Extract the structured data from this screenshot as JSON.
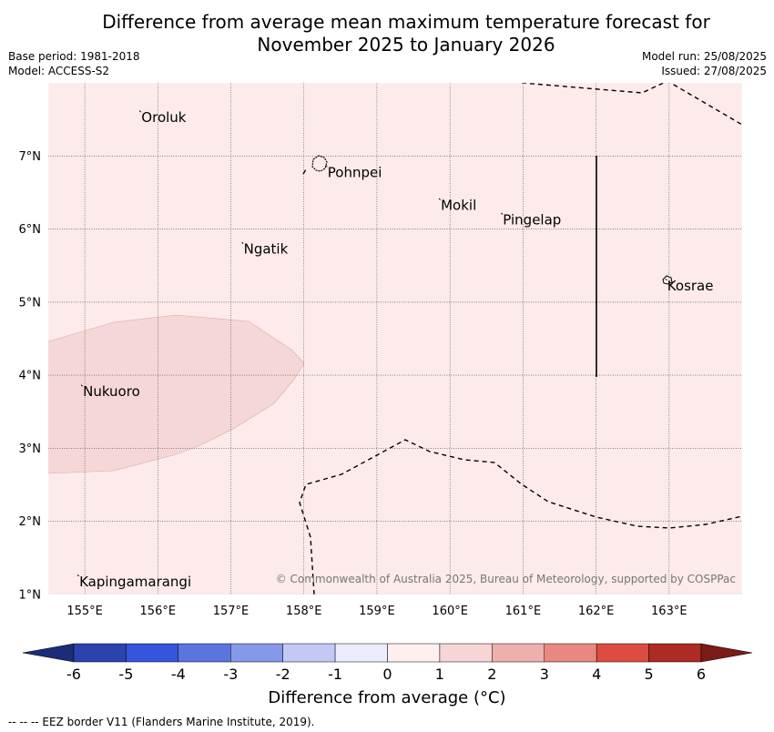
{
  "title_line1": "Difference from average mean maximum temperature forecast for",
  "title_line2": "November 2025 to January 2026",
  "meta": {
    "base_period": "Base period: 1981-2018",
    "model": "Model: ACCESS-S2",
    "model_run": "Model run: 25/08/2025",
    "issued": "Issued: 27/08/2025"
  },
  "map": {
    "lon_range": [
      154.5,
      164.0
    ],
    "lat_range": [
      1.0,
      8.0
    ],
    "lon_ticks": [
      "155°E",
      "156°E",
      "157°E",
      "158°E",
      "159°E",
      "160°E",
      "161°E",
      "162°E",
      "163°E"
    ],
    "lat_ticks": [
      "1°N",
      "2°N",
      "3°N",
      "4°N",
      "5°N",
      "6°N",
      "7°N"
    ],
    "background_anomaly_class": "0 to 1",
    "background_color": "#fcebea",
    "warm_region_class": "1 to 2",
    "warm_region_color": "#f5d7d7",
    "places": [
      {
        "name": "Oroluk",
        "lon": 155.75,
        "lat": 7.6
      },
      {
        "name": "Pohnpei",
        "lon": 158.3,
        "lat": 6.85
      },
      {
        "name": "Mokil",
        "lon": 159.85,
        "lat": 6.4
      },
      {
        "name": "Pingelap",
        "lon": 160.7,
        "lat": 6.2
      },
      {
        "name": "Ngatik",
        "lon": 157.15,
        "lat": 5.8
      },
      {
        "name": "Kosrae",
        "lon": 162.95,
        "lat": 5.3
      },
      {
        "name": "Nukuoro",
        "lon": 154.95,
        "lat": 3.85
      },
      {
        "name": "Kapingamarangi",
        "lon": 154.9,
        "lat": 1.25
      }
    ],
    "copyright": "© Commonwealth of Australia 2025, Bureau of Meteorology, supported by COSPPac"
  },
  "colorbar": {
    "ticks": [
      "-6",
      "-5",
      "-4",
      "-3",
      "-2",
      "-1",
      "0",
      "1",
      "2",
      "3",
      "4",
      "5",
      "6"
    ],
    "colors": [
      "#2b42b0",
      "#3455dc",
      "#5b74e0",
      "#8698e9",
      "#c3c9f4",
      "#ebedfd",
      "#fff0ef",
      "#f5d5d5",
      "#efb0ad",
      "#e98880",
      "#dc4c40",
      "#ad2a25"
    ],
    "under_color": "#1c2c78",
    "over_color": "#7b1b17",
    "label": "Difference from average (°C)"
  },
  "footnote": "--  --  -- EEZ border V11 (Flanders Marine Institute, 2019)."
}
